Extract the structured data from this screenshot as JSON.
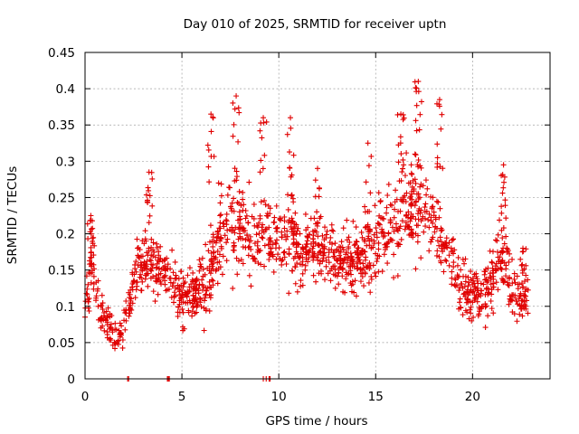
{
  "chart_data": {
    "type": "scatter",
    "title": "Day 010 of 2025, SRMTID for receiver uptn",
    "xlabel": "GPS time / hours",
    "ylabel": "SRMTID / TECUs",
    "xlim": [
      0,
      24
    ],
    "ylim": [
      0,
      0.45
    ],
    "x_ticks": [
      0,
      5,
      10,
      15,
      20
    ],
    "x_tick_labels": [
      "0",
      "5",
      "10",
      "15",
      "20"
    ],
    "y_ticks": [
      0,
      0.05,
      0.1,
      0.15,
      0.2,
      0.25,
      0.3,
      0.35,
      0.4,
      0.45
    ],
    "y_tick_labels": [
      "0",
      "0.05",
      "0.1",
      "0.15",
      "0.2",
      "0.25",
      "0.3",
      "0.35",
      "0.4",
      "0.45"
    ],
    "grid": true,
    "marker": "+",
    "color": "#e00000",
    "envelope_note": "approximate trend of the dense point cloud, read from the figure",
    "envelope": [
      {
        "x": 0.0,
        "mean": 0.11,
        "spread": 0.05
      },
      {
        "x": 0.4,
        "mean": 0.16,
        "spread": 0.05
      },
      {
        "x": 0.8,
        "mean": 0.09,
        "spread": 0.03
      },
      {
        "x": 1.3,
        "mean": 0.07,
        "spread": 0.03
      },
      {
        "x": 1.7,
        "mean": 0.05,
        "spread": 0.025
      },
      {
        "x": 2.2,
        "mean": 0.1,
        "spread": 0.04
      },
      {
        "x": 2.7,
        "mean": 0.15,
        "spread": 0.05
      },
      {
        "x": 3.3,
        "mean": 0.17,
        "spread": 0.05
      },
      {
        "x": 3.8,
        "mean": 0.15,
        "spread": 0.05
      },
      {
        "x": 4.3,
        "mean": 0.14,
        "spread": 0.05
      },
      {
        "x": 5.0,
        "mean": 0.11,
        "spread": 0.04
      },
      {
        "x": 5.6,
        "mean": 0.12,
        "spread": 0.04
      },
      {
        "x": 6.3,
        "mean": 0.13,
        "spread": 0.06
      },
      {
        "x": 7.0,
        "mean": 0.2,
        "spread": 0.07
      },
      {
        "x": 7.8,
        "mean": 0.22,
        "spread": 0.08
      },
      {
        "x": 8.5,
        "mean": 0.2,
        "spread": 0.06
      },
      {
        "x": 9.2,
        "mean": 0.19,
        "spread": 0.06
      },
      {
        "x": 10.0,
        "mean": 0.2,
        "spread": 0.07
      },
      {
        "x": 10.8,
        "mean": 0.18,
        "spread": 0.06
      },
      {
        "x": 11.6,
        "mean": 0.18,
        "spread": 0.06
      },
      {
        "x": 12.4,
        "mean": 0.17,
        "spread": 0.05
      },
      {
        "x": 13.2,
        "mean": 0.16,
        "spread": 0.05
      },
      {
        "x": 14.0,
        "mean": 0.16,
        "spread": 0.05
      },
      {
        "x": 14.8,
        "mean": 0.18,
        "spread": 0.06
      },
      {
        "x": 15.6,
        "mean": 0.21,
        "spread": 0.07
      },
      {
        "x": 16.4,
        "mean": 0.23,
        "spread": 0.08
      },
      {
        "x": 17.1,
        "mean": 0.25,
        "spread": 0.09
      },
      {
        "x": 17.8,
        "mean": 0.22,
        "spread": 0.07
      },
      {
        "x": 18.5,
        "mean": 0.19,
        "spread": 0.06
      },
      {
        "x": 19.2,
        "mean": 0.14,
        "spread": 0.05
      },
      {
        "x": 19.8,
        "mean": 0.12,
        "spread": 0.04
      },
      {
        "x": 20.4,
        "mean": 0.11,
        "spread": 0.04
      },
      {
        "x": 21.0,
        "mean": 0.14,
        "spread": 0.05
      },
      {
        "x": 21.5,
        "mean": 0.18,
        "spread": 0.05
      },
      {
        "x": 22.0,
        "mean": 0.13,
        "spread": 0.05
      },
      {
        "x": 22.5,
        "mean": 0.11,
        "spread": 0.04
      },
      {
        "x": 22.9,
        "mean": 0.1,
        "spread": 0.04
      }
    ],
    "peaks": [
      {
        "x": 0.3,
        "y": 0.225
      },
      {
        "x": 3.3,
        "y": 0.285
      },
      {
        "x": 6.5,
        "y": 0.365
      },
      {
        "x": 7.8,
        "y": 0.39
      },
      {
        "x": 9.2,
        "y": 0.36
      },
      {
        "x": 10.6,
        "y": 0.36
      },
      {
        "x": 12.0,
        "y": 0.29
      },
      {
        "x": 14.6,
        "y": 0.325
      },
      {
        "x": 16.3,
        "y": 0.365
      },
      {
        "x": 17.2,
        "y": 0.41
      },
      {
        "x": 18.3,
        "y": 0.385
      },
      {
        "x": 21.6,
        "y": 0.295
      },
      {
        "x": 22.6,
        "y": 0.18
      }
    ],
    "zero_points_x": [
      2.2,
      2.25,
      4.25,
      4.3,
      4.35,
      9.2,
      9.35,
      9.5,
      9.55
    ]
  }
}
